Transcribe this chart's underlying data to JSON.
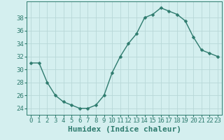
{
  "x": [
    0,
    1,
    2,
    3,
    4,
    5,
    6,
    7,
    8,
    9,
    10,
    11,
    12,
    13,
    14,
    15,
    16,
    17,
    18,
    19,
    20,
    21,
    22,
    23
  ],
  "y": [
    31,
    31,
    28,
    26,
    25,
    24.5,
    24,
    24,
    24.5,
    26,
    29.5,
    32,
    34,
    35.5,
    38,
    38.5,
    39.5,
    39,
    38.5,
    37.5,
    35,
    33,
    32.5,
    32
  ],
  "line_color": "#2e7b6e",
  "marker": "D",
  "marker_size": 2.5,
  "bg_color": "#d4efef",
  "grid_color": "#b8d8d8",
  "xlabel": "Humidex (Indice chaleur)",
  "xlim": [
    -0.5,
    23.5
  ],
  "ylim": [
    23.0,
    40.5
  ],
  "yticks": [
    24,
    26,
    28,
    30,
    32,
    34,
    36,
    38
  ],
  "xticks": [
    0,
    1,
    2,
    3,
    4,
    5,
    6,
    7,
    8,
    9,
    10,
    11,
    12,
    13,
    14,
    15,
    16,
    17,
    18,
    19,
    20,
    21,
    22,
    23
  ],
  "tick_color": "#2e7b6e",
  "label_color": "#2e7b6e",
  "xlabel_fontsize": 8,
  "tick_fontsize": 6.5
}
